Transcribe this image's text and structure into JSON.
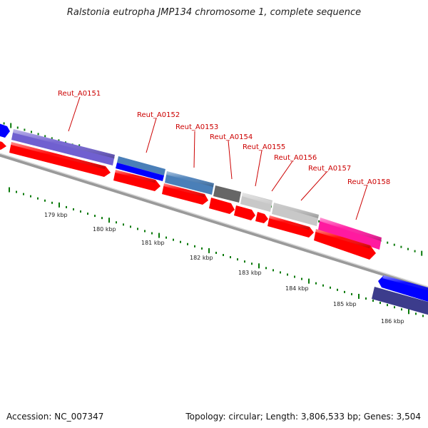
{
  "title": "Ralstonia eutropha JMP134 chromosome 1, complete sequence",
  "footer": {
    "accession": "Accession: NC_007347",
    "stats": "Topology: circular; Length: 3,806,533 bp; Genes: 3,504"
  },
  "colors": {
    "gene_red": "#ff0000",
    "gene_blue": "#0000ff",
    "gene_purple": "#7060d0",
    "gene_steel": "#4a7fb8",
    "gene_dark_gray": "#666666",
    "gene_light_gray": "#c8c8c8",
    "gene_magenta": "#ff1aa0",
    "gene_navy": "#3c3c8c",
    "tick_green": "#0a7a0a",
    "label_red": "#cc0000"
  },
  "scale_labels": [
    "179 kbp",
    "180 kbp",
    "181 kbp",
    "182 kbp",
    "183 kbp",
    "184 kbp",
    "185 kbp",
    "186 kbp"
  ],
  "gene_labels": [
    "Reut_A0151",
    "Reut_A0152",
    "Reut_A0153",
    "Reut_A0154",
    "Reut_A0155",
    "Reut_A0156",
    "Reut_A0157",
    "Reut_A0158"
  ]
}
